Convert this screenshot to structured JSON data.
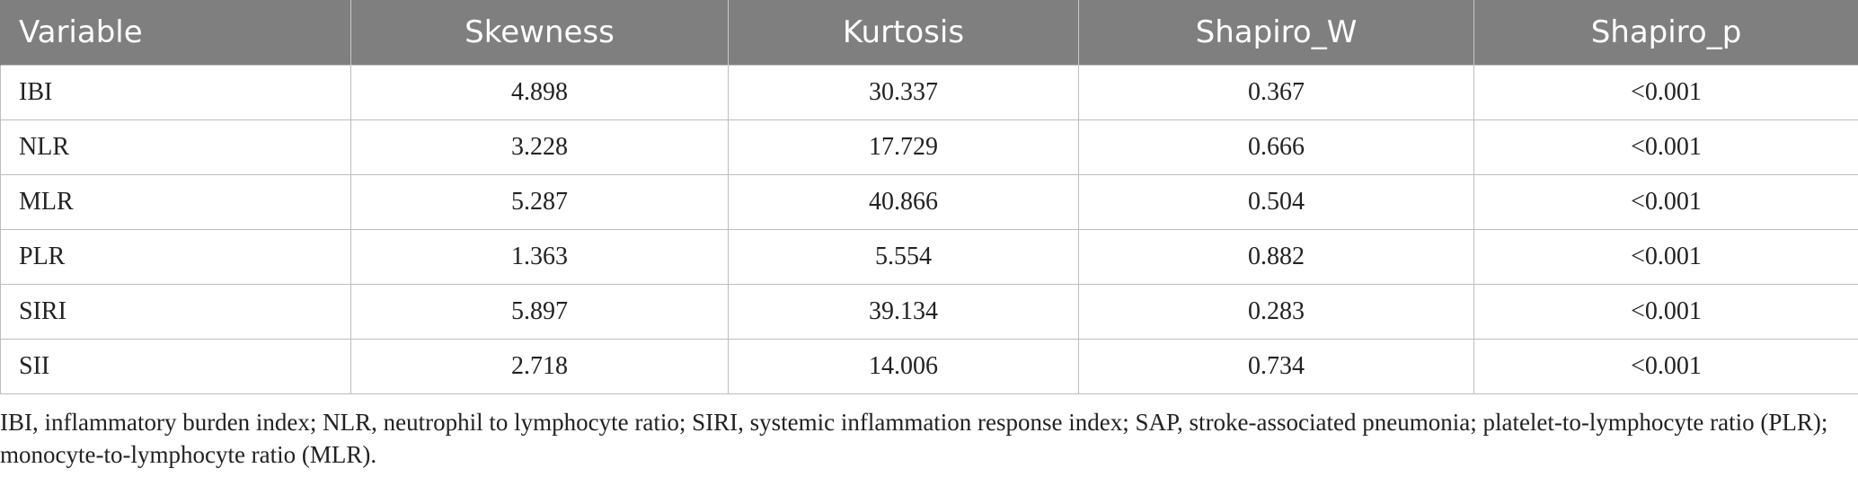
{
  "table": {
    "headers": [
      "Variable",
      "Skewness",
      "Kurtosis",
      "Shapiro_W",
      "Shapiro_p"
    ],
    "rows": [
      [
        "IBI",
        "4.898",
        "30.337",
        "0.367",
        "<0.001"
      ],
      [
        "NLR",
        "3.228",
        "17.729",
        "0.666",
        "<0.001"
      ],
      [
        "MLR",
        "5.287",
        "40.866",
        "0.504",
        "<0.001"
      ],
      [
        "PLR",
        "1.363",
        "5.554",
        "0.882",
        "<0.001"
      ],
      [
        "SIRI",
        "5.897",
        "39.134",
        "0.283",
        "<0.001"
      ],
      [
        "SII",
        "2.718",
        "14.006",
        "0.734",
        "<0.001"
      ]
    ]
  },
  "footnote": "IBI, inflammatory burden index; NLR, neutrophil to lymphocyte ratio; SIRI, systemic inflammation response index; SAP, stroke-associated pneumonia; platelet-to-lymphocyte ratio (PLR); monocyte-to-lymphocyte ratio (MLR).",
  "colors": {
    "header_bg": "#7f7f7f",
    "header_text": "#ffffff",
    "border": "#bdbdbd"
  }
}
